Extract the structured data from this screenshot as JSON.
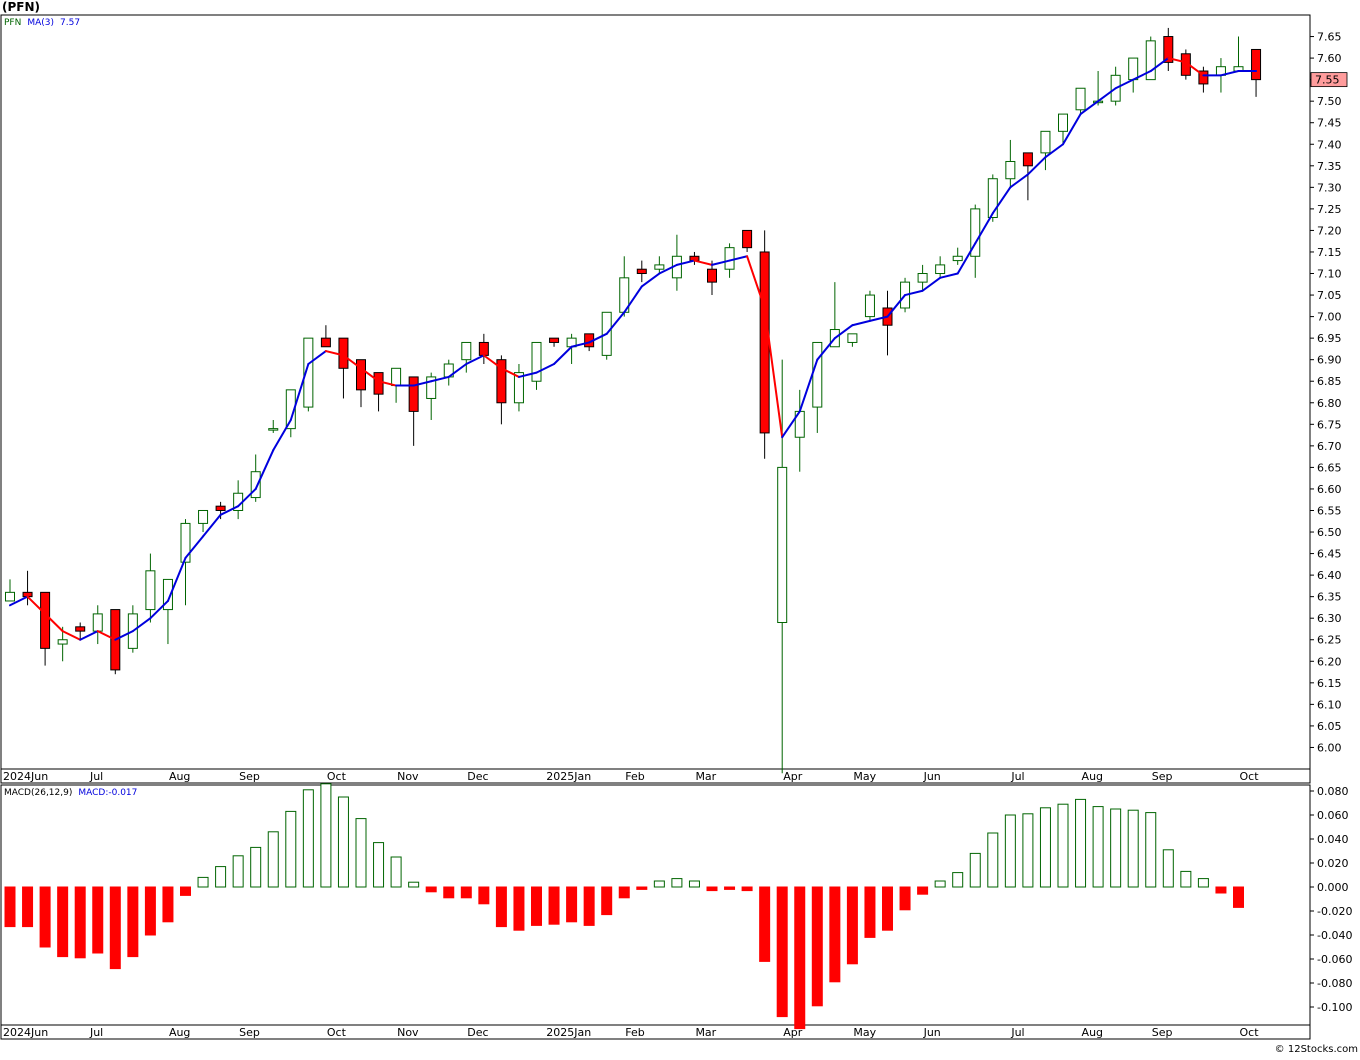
{
  "title": "(PFN)",
  "credit": "© 12Stocks.com",
  "colors": {
    "up": "#006400",
    "down": "#ff0000",
    "ma_up": "#0000dd",
    "ma_down": "#ff0000",
    "grid": "#b0b0b0",
    "panel_bg": "#ffffff",
    "last_price_bg": "#ff9c9c"
  },
  "price_panel": {
    "symbol": "PFN",
    "ma_label": "MA(3)",
    "ma_value": "7.57",
    "last_price_label": "7.55"
  },
  "macd_panel": {
    "label": "MACD(26,12,9)",
    "value_label": "MACD:-0.017"
  },
  "chart_data": [
    {
      "type": "candlestick",
      "title": "(PFN)",
      "interval": "weekly",
      "ylim": [
        5.95,
        7.7
      ],
      "yticks": [
        "7.65",
        "7.60",
        "7.55",
        "7.50",
        "7.45",
        "7.40",
        "7.35",
        "7.30",
        "7.25",
        "7.20",
        "7.15",
        "7.10",
        "7.05",
        "7.00",
        "6.95",
        "6.90",
        "6.85",
        "6.80",
        "6.75",
        "6.70",
        "6.65",
        "6.60",
        "6.55",
        "6.50",
        "6.45",
        "6.40",
        "6.35",
        "6.30",
        "6.25",
        "6.20",
        "6.15",
        "6.10",
        "6.05",
        "6.00"
      ],
      "x_labels": [
        {
          "label": "2024Jun",
          "at": 0
        },
        {
          "label": "Jul",
          "at": 4.5
        },
        {
          "label": "Aug",
          "at": 9
        },
        {
          "label": "Sep",
          "at": 13
        },
        {
          "label": "Oct",
          "at": 18
        },
        {
          "label": "Nov",
          "at": 22
        },
        {
          "label": "Dec",
          "at": 26
        },
        {
          "label": "2025Jan",
          "at": 30.5
        },
        {
          "label": "Feb",
          "at": 35
        },
        {
          "label": "Mar",
          "at": 39
        },
        {
          "label": "Apr",
          "at": 44
        },
        {
          "label": "May",
          "at": 48
        },
        {
          "label": "Jun",
          "at": 52
        },
        {
          "label": "Jul",
          "at": 57
        },
        {
          "label": "Aug",
          "at": 61
        },
        {
          "label": "Sep",
          "at": 65
        },
        {
          "label": "Oct",
          "at": 70
        }
      ],
      "candles": [
        {
          "o": 6.34,
          "h": 6.39,
          "l": 6.34,
          "c": 6.36
        },
        {
          "o": 6.36,
          "h": 6.41,
          "l": 6.33,
          "c": 6.35
        },
        {
          "o": 6.36,
          "h": 6.36,
          "l": 6.19,
          "c": 6.23
        },
        {
          "o": 6.24,
          "h": 6.28,
          "l": 6.2,
          "c": 6.25
        },
        {
          "o": 6.28,
          "h": 6.29,
          "l": 6.25,
          "c": 6.27
        },
        {
          "o": 6.27,
          "h": 6.33,
          "l": 6.24,
          "c": 6.31
        },
        {
          "o": 6.32,
          "h": 6.32,
          "l": 6.17,
          "c": 6.18
        },
        {
          "o": 6.23,
          "h": 6.33,
          "l": 6.22,
          "c": 6.31
        },
        {
          "o": 6.32,
          "h": 6.45,
          "l": 6.29,
          "c": 6.41
        },
        {
          "o": 6.32,
          "h": 6.39,
          "l": 6.24,
          "c": 6.39
        },
        {
          "o": 6.43,
          "h": 6.53,
          "l": 6.33,
          "c": 6.52
        },
        {
          "o": 6.52,
          "h": 6.55,
          "l": 6.5,
          "c": 6.55
        },
        {
          "o": 6.56,
          "h": 6.57,
          "l": 6.53,
          "c": 6.55
        },
        {
          "o": 6.55,
          "h": 6.62,
          "l": 6.53,
          "c": 6.59
        },
        {
          "o": 6.58,
          "h": 6.68,
          "l": 6.57,
          "c": 6.64
        },
        {
          "o": 6.74,
          "h": 6.76,
          "l": 6.73,
          "c": 6.74
        },
        {
          "o": 6.74,
          "h": 6.83,
          "l": 6.72,
          "c": 6.83
        },
        {
          "o": 6.79,
          "h": 6.95,
          "l": 6.78,
          "c": 6.95
        },
        {
          "o": 6.95,
          "h": 6.98,
          "l": 6.93,
          "c": 6.93
        },
        {
          "o": 6.95,
          "h": 6.95,
          "l": 6.81,
          "c": 6.88
        },
        {
          "o": 6.9,
          "h": 6.9,
          "l": 6.79,
          "c": 6.83
        },
        {
          "o": 6.87,
          "h": 6.87,
          "l": 6.78,
          "c": 6.82
        },
        {
          "o": 6.84,
          "h": 6.88,
          "l": 6.8,
          "c": 6.88
        },
        {
          "o": 6.86,
          "h": 6.86,
          "l": 6.7,
          "c": 6.78
        },
        {
          "o": 6.81,
          "h": 6.87,
          "l": 6.76,
          "c": 6.86
        },
        {
          "o": 6.86,
          "h": 6.9,
          "l": 6.84,
          "c": 6.89
        },
        {
          "o": 6.9,
          "h": 6.94,
          "l": 6.87,
          "c": 6.94
        },
        {
          "o": 6.94,
          "h": 6.96,
          "l": 6.89,
          "c": 6.91
        },
        {
          "o": 6.9,
          "h": 6.91,
          "l": 6.75,
          "c": 6.8
        },
        {
          "o": 6.8,
          "h": 6.89,
          "l": 6.78,
          "c": 6.87
        },
        {
          "o": 6.85,
          "h": 6.94,
          "l": 6.83,
          "c": 6.94
        },
        {
          "o": 6.95,
          "h": 6.95,
          "l": 6.93,
          "c": 6.94
        },
        {
          "o": 6.93,
          "h": 6.96,
          "l": 6.89,
          "c": 6.95
        },
        {
          "o": 6.96,
          "h": 6.96,
          "l": 6.92,
          "c": 6.93
        },
        {
          "o": 6.91,
          "h": 7.01,
          "l": 6.9,
          "c": 7.01
        },
        {
          "o": 7.01,
          "h": 7.14,
          "l": 7.0,
          "c": 7.09
        },
        {
          "o": 7.11,
          "h": 7.13,
          "l": 7.08,
          "c": 7.1
        },
        {
          "o": 7.11,
          "h": 7.14,
          "l": 7.1,
          "c": 7.12
        },
        {
          "o": 7.09,
          "h": 7.19,
          "l": 7.06,
          "c": 7.14
        },
        {
          "o": 7.14,
          "h": 7.15,
          "l": 7.12,
          "c": 7.13
        },
        {
          "o": 7.11,
          "h": 7.13,
          "l": 7.05,
          "c": 7.08
        },
        {
          "o": 7.11,
          "h": 7.17,
          "l": 7.09,
          "c": 7.16
        },
        {
          "o": 7.2,
          "h": 7.2,
          "l": 7.15,
          "c": 7.16
        },
        {
          "o": 7.15,
          "h": 7.2,
          "l": 6.67,
          "c": 6.73
        },
        {
          "o": 6.29,
          "h": 6.9,
          "l": 5.94,
          "c": 6.65
        },
        {
          "o": 6.72,
          "h": 6.83,
          "l": 6.64,
          "c": 6.78
        },
        {
          "o": 6.79,
          "h": 6.94,
          "l": 6.73,
          "c": 6.94
        },
        {
          "o": 6.93,
          "h": 7.08,
          "l": 6.93,
          "c": 6.97
        },
        {
          "o": 6.94,
          "h": 6.96,
          "l": 6.93,
          "c": 6.96
        },
        {
          "o": 7.0,
          "h": 7.06,
          "l": 6.99,
          "c": 7.05
        },
        {
          "o": 7.02,
          "h": 7.06,
          "l": 6.91,
          "c": 6.98
        },
        {
          "o": 7.02,
          "h": 7.09,
          "l": 7.01,
          "c": 7.08
        },
        {
          "o": 7.08,
          "h": 7.12,
          "l": 7.06,
          "c": 7.1
        },
        {
          "o": 7.1,
          "h": 7.14,
          "l": 7.09,
          "c": 7.12
        },
        {
          "o": 7.13,
          "h": 7.16,
          "l": 7.12,
          "c": 7.14
        },
        {
          "o": 7.14,
          "h": 7.26,
          "l": 7.09,
          "c": 7.25
        },
        {
          "o": 7.23,
          "h": 7.33,
          "l": 7.22,
          "c": 7.32
        },
        {
          "o": 7.32,
          "h": 7.41,
          "l": 7.3,
          "c": 7.36
        },
        {
          "o": 7.38,
          "h": 7.38,
          "l": 7.27,
          "c": 7.35
        },
        {
          "o": 7.38,
          "h": 7.43,
          "l": 7.34,
          "c": 7.43
        },
        {
          "o": 7.43,
          "h": 7.47,
          "l": 7.4,
          "c": 7.47
        },
        {
          "o": 7.48,
          "h": 7.53,
          "l": 7.47,
          "c": 7.53
        },
        {
          "o": 7.5,
          "h": 7.57,
          "l": 7.49,
          "c": 7.5
        },
        {
          "o": 7.5,
          "h": 7.58,
          "l": 7.49,
          "c": 7.56
        },
        {
          "o": 7.55,
          "h": 7.6,
          "l": 7.52,
          "c": 7.6
        },
        {
          "o": 7.55,
          "h": 7.65,
          "l": 7.55,
          "c": 7.64
        },
        {
          "o": 7.65,
          "h": 7.67,
          "l": 7.57,
          "c": 7.59
        },
        {
          "o": 7.61,
          "h": 7.62,
          "l": 7.55,
          "c": 7.56
        },
        {
          "o": 7.57,
          "h": 7.58,
          "l": 7.52,
          "c": 7.54
        },
        {
          "o": 7.56,
          "h": 7.6,
          "l": 7.52,
          "c": 7.58
        },
        {
          "o": 7.57,
          "h": 7.65,
          "l": 7.57,
          "c": 7.58
        },
        {
          "o": 7.62,
          "h": 7.62,
          "l": 7.51,
          "c": 7.55
        }
      ],
      "ma": {
        "name": "MA(3)",
        "values": [
          6.33,
          6.35,
          6.31,
          6.27,
          6.25,
          6.27,
          6.25,
          6.27,
          6.3,
          6.34,
          6.44,
          6.49,
          6.54,
          6.56,
          6.6,
          6.69,
          6.76,
          6.89,
          6.92,
          6.91,
          6.88,
          6.85,
          6.84,
          6.84,
          6.85,
          6.86,
          6.89,
          6.91,
          6.88,
          6.86,
          6.87,
          6.89,
          6.93,
          6.94,
          6.96,
          7.01,
          7.07,
          7.1,
          7.12,
          7.13,
          7.12,
          7.13,
          7.14,
          7.02,
          6.72,
          6.78,
          6.9,
          6.95,
          6.98,
          6.99,
          7.0,
          7.05,
          7.06,
          7.09,
          7.1,
          7.17,
          7.24,
          7.3,
          7.33,
          7.37,
          7.4,
          7.47,
          7.5,
          7.53,
          7.55,
          7.57,
          7.6,
          7.59,
          7.56,
          7.56,
          7.57,
          7.57
        ]
      }
    },
    {
      "type": "bar",
      "title": "MACD(26,12,9)",
      "ylim": [
        -0.115,
        0.085
      ],
      "yticks": [
        "0.080",
        "0.060",
        "0.040",
        "0.020",
        "0.000",
        "-0.020",
        "-0.040",
        "-0.060",
        "-0.080",
        "-0.100"
      ],
      "values": [
        -0.033,
        -0.033,
        -0.05,
        -0.058,
        -0.059,
        -0.055,
        -0.068,
        -0.058,
        -0.04,
        -0.029,
        -0.007,
        0.008,
        0.017,
        0.026,
        0.033,
        0.046,
        0.063,
        0.081,
        0.086,
        0.075,
        0.057,
        0.037,
        0.025,
        0.004,
        -0.004,
        -0.009,
        -0.009,
        -0.014,
        -0.033,
        -0.036,
        -0.032,
        -0.031,
        -0.029,
        -0.032,
        -0.023,
        -0.009,
        -0.002,
        0.005,
        0.007,
        0.005,
        -0.003,
        -0.002,
        -0.003,
        -0.062,
        -0.108,
        -0.118,
        -0.099,
        -0.079,
        -0.064,
        -0.042,
        -0.036,
        -0.019,
        -0.006,
        0.005,
        0.012,
        0.028,
        0.045,
        0.06,
        0.061,
        0.066,
        0.069,
        0.073,
        0.067,
        0.065,
        0.064,
        0.062,
        0.031,
        0.013,
        0.007,
        -0.005,
        -0.017
      ]
    }
  ]
}
